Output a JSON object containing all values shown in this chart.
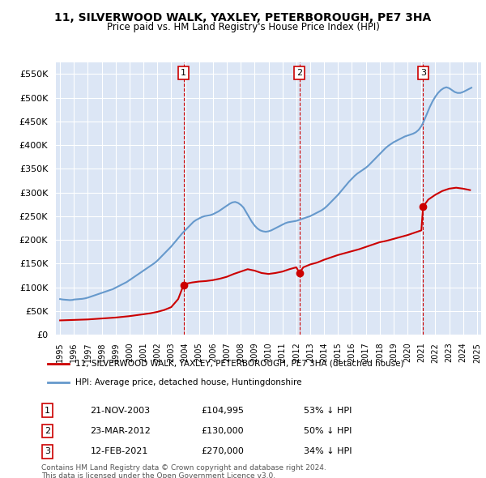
{
  "title": "11, SILVERWOOD WALK, YAXLEY, PETERBOROUGH, PE7 3HA",
  "subtitle": "Price paid vs. HM Land Registry's House Price Index (HPI)",
  "background_color": "#ffffff",
  "plot_bg_color": "#dce6f5",
  "grid_color": "#ffffff",
  "hpi_line_color": "#6699cc",
  "price_line_color": "#cc0000",
  "sale_marker_color": "#cc0000",
  "vline_color": "#cc0000",
  "ylim": [
    0,
    575000
  ],
  "yticks": [
    0,
    50000,
    100000,
    150000,
    200000,
    250000,
    300000,
    350000,
    400000,
    450000,
    500000,
    550000
  ],
  "ytick_labels": [
    "£0",
    "£50K",
    "£100K",
    "£150K",
    "£200K",
    "£250K",
    "£300K",
    "£350K",
    "£400K",
    "£450K",
    "£500K",
    "£550K"
  ],
  "xmin_year": 1995,
  "xmax_year": 2025,
  "xtick_years": [
    1995,
    1996,
    1997,
    1998,
    1999,
    2000,
    2001,
    2002,
    2003,
    2004,
    2005,
    2006,
    2007,
    2008,
    2009,
    2010,
    2011,
    2012,
    2013,
    2014,
    2015,
    2016,
    2017,
    2018,
    2019,
    2020,
    2021,
    2022,
    2023,
    2024,
    2025
  ],
  "sales": [
    {
      "num": 1,
      "date": "21-NOV-2003",
      "price": 104995,
      "pct": "53%",
      "dir": "↓"
    },
    {
      "num": 2,
      "date": "23-MAR-2012",
      "price": 130000,
      "pct": "50%",
      "dir": "↓"
    },
    {
      "num": 3,
      "date": "12-FEB-2021",
      "price": 270000,
      "pct": "34%",
      "dir": "↓"
    }
  ],
  "sale_years": [
    2003.89,
    2012.23,
    2021.12
  ],
  "sale_prices": [
    104995,
    130000,
    270000
  ],
  "legend_line1": "11, SILVERWOOD WALK, YAXLEY, PETERBOROUGH, PE7 3HA (detached house)",
  "legend_line2": "HPI: Average price, detached house, Huntingdonshire",
  "footnote1": "Contains HM Land Registry data © Crown copyright and database right 2024.",
  "footnote2": "This data is licensed under the Open Government Licence v3.0.",
  "hpi_years": [
    1995.0,
    1995.1,
    1995.2,
    1995.3,
    1995.4,
    1995.5,
    1995.6,
    1995.7,
    1995.8,
    1995.9,
    1996.0,
    1996.2,
    1996.4,
    1996.6,
    1996.8,
    1997.0,
    1997.2,
    1997.4,
    1997.6,
    1997.8,
    1998.0,
    1998.2,
    1998.4,
    1998.6,
    1998.8,
    1999.0,
    1999.2,
    1999.4,
    1999.6,
    1999.8,
    2000.0,
    2000.2,
    2000.4,
    2000.6,
    2000.8,
    2001.0,
    2001.2,
    2001.4,
    2001.6,
    2001.8,
    2002.0,
    2002.2,
    2002.4,
    2002.6,
    2002.8,
    2003.0,
    2003.2,
    2003.4,
    2003.6,
    2003.8,
    2004.0,
    2004.2,
    2004.4,
    2004.6,
    2004.8,
    2005.0,
    2005.2,
    2005.4,
    2005.6,
    2005.8,
    2006.0,
    2006.2,
    2006.4,
    2006.6,
    2006.8,
    2007.0,
    2007.2,
    2007.4,
    2007.6,
    2007.8,
    2008.0,
    2008.2,
    2008.4,
    2008.6,
    2008.8,
    2009.0,
    2009.2,
    2009.4,
    2009.6,
    2009.8,
    2010.0,
    2010.2,
    2010.4,
    2010.6,
    2010.8,
    2011.0,
    2011.2,
    2011.4,
    2011.6,
    2011.8,
    2012.0,
    2012.2,
    2012.4,
    2012.6,
    2012.8,
    2013.0,
    2013.2,
    2013.4,
    2013.6,
    2013.8,
    2014.0,
    2014.2,
    2014.4,
    2014.6,
    2014.8,
    2015.0,
    2015.2,
    2015.4,
    2015.6,
    2015.8,
    2016.0,
    2016.2,
    2016.4,
    2016.6,
    2016.8,
    2017.0,
    2017.2,
    2017.4,
    2017.6,
    2017.8,
    2018.0,
    2018.2,
    2018.4,
    2018.6,
    2018.8,
    2019.0,
    2019.2,
    2019.4,
    2019.6,
    2019.8,
    2020.0,
    2020.2,
    2020.4,
    2020.6,
    2020.8,
    2021.0,
    2021.2,
    2021.4,
    2021.6,
    2021.8,
    2022.0,
    2022.2,
    2022.4,
    2022.6,
    2022.8,
    2023.0,
    2023.2,
    2023.4,
    2023.6,
    2023.8,
    2024.0,
    2024.2,
    2024.4,
    2024.6
  ],
  "hpi_values": [
    75000,
    74500,
    74000,
    73800,
    73500,
    73300,
    73000,
    72800,
    73000,
    73200,
    74000,
    74500,
    75000,
    75500,
    76500,
    78000,
    80000,
    82000,
    84000,
    86000,
    88000,
    90000,
    92000,
    94000,
    96000,
    99000,
    102000,
    105000,
    108000,
    111000,
    115000,
    119000,
    123000,
    127000,
    131000,
    135000,
    139000,
    143000,
    147000,
    151000,
    156000,
    162000,
    168000,
    174000,
    180000,
    186000,
    193000,
    200000,
    207000,
    214000,
    220000,
    226000,
    232000,
    238000,
    242000,
    245000,
    248000,
    250000,
    251000,
    252000,
    254000,
    257000,
    260000,
    264000,
    268000,
    272000,
    276000,
    279000,
    280000,
    278000,
    274000,
    268000,
    258000,
    248000,
    238000,
    230000,
    224000,
    220000,
    218000,
    217000,
    218000,
    220000,
    223000,
    226000,
    229000,
    232000,
    235000,
    237000,
    238000,
    239000,
    240000,
    242000,
    244000,
    246000,
    248000,
    250000,
    253000,
    256000,
    259000,
    262000,
    266000,
    271000,
    277000,
    283000,
    289000,
    295000,
    302000,
    309000,
    316000,
    323000,
    329000,
    335000,
    340000,
    344000,
    348000,
    352000,
    357000,
    363000,
    369000,
    375000,
    381000,
    387000,
    393000,
    398000,
    402000,
    406000,
    409000,
    412000,
    415000,
    418000,
    420000,
    422000,
    424000,
    427000,
    432000,
    440000,
    452000,
    466000,
    480000,
    492000,
    502000,
    510000,
    516000,
    520000,
    522000,
    520000,
    516000,
    512000,
    510000,
    510000,
    512000,
    515000,
    518000,
    521000
  ],
  "price_years": [
    1995.0,
    1995.5,
    1996.0,
    1996.5,
    1997.0,
    1997.5,
    1998.0,
    1998.5,
    1999.0,
    1999.5,
    2000.0,
    2000.5,
    2001.0,
    2001.5,
    2002.0,
    2002.5,
    2003.0,
    2003.5,
    2003.89,
    2004.0,
    2004.5,
    2005.0,
    2005.5,
    2006.0,
    2006.5,
    2007.0,
    2007.5,
    2008.0,
    2008.5,
    2009.0,
    2009.5,
    2010.0,
    2010.5,
    2011.0,
    2011.5,
    2012.0,
    2012.23,
    2012.5,
    2013.0,
    2013.5,
    2014.0,
    2014.5,
    2015.0,
    2015.5,
    2016.0,
    2016.5,
    2017.0,
    2017.5,
    2018.0,
    2018.5,
    2019.0,
    2019.5,
    2020.0,
    2020.5,
    2021.0,
    2021.12,
    2021.5,
    2022.0,
    2022.5,
    2023.0,
    2023.5,
    2024.0,
    2024.5
  ],
  "price_values": [
    30000,
    30500,
    31000,
    31500,
    32000,
    33000,
    34000,
    35000,
    36000,
    37500,
    39000,
    41000,
    43000,
    45000,
    48000,
    52000,
    58000,
    75000,
    104995,
    107000,
    110000,
    112000,
    113000,
    115000,
    118000,
    122000,
    128000,
    133000,
    138000,
    135000,
    130000,
    128000,
    130000,
    133000,
    138000,
    142000,
    130000,
    142000,
    148000,
    152000,
    158000,
    163000,
    168000,
    172000,
    176000,
    180000,
    185000,
    190000,
    195000,
    198000,
    202000,
    206000,
    210000,
    215000,
    220000,
    270000,
    285000,
    295000,
    303000,
    308000,
    310000,
    308000,
    305000
  ]
}
